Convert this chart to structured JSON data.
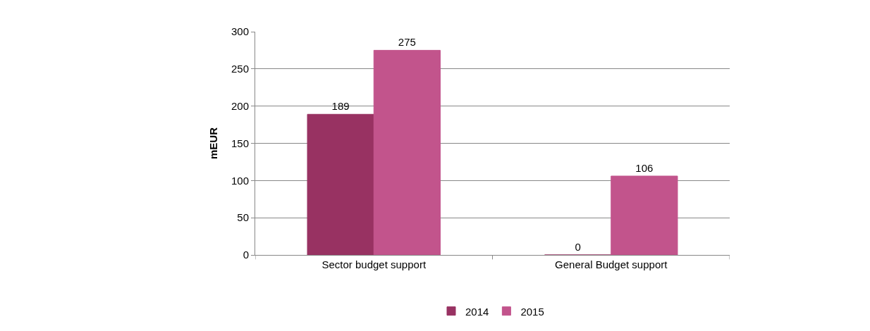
{
  "chart_data": {
    "type": "bar",
    "ylabel": "mEUR",
    "categories": [
      "Sector budget support",
      "General Budget support"
    ],
    "series": [
      {
        "name": "2014",
        "color": "#983262",
        "values": [
          189,
          0
        ]
      },
      {
        "name": "2015",
        "color": "#c2548c",
        "values": [
          275,
          106
        ]
      }
    ],
    "ylim": [
      0,
      300
    ],
    "yticks": [
      0,
      50,
      100,
      150,
      200,
      250,
      300
    ],
    "grid": "y",
    "data_labels": true,
    "legend": "bottom"
  }
}
